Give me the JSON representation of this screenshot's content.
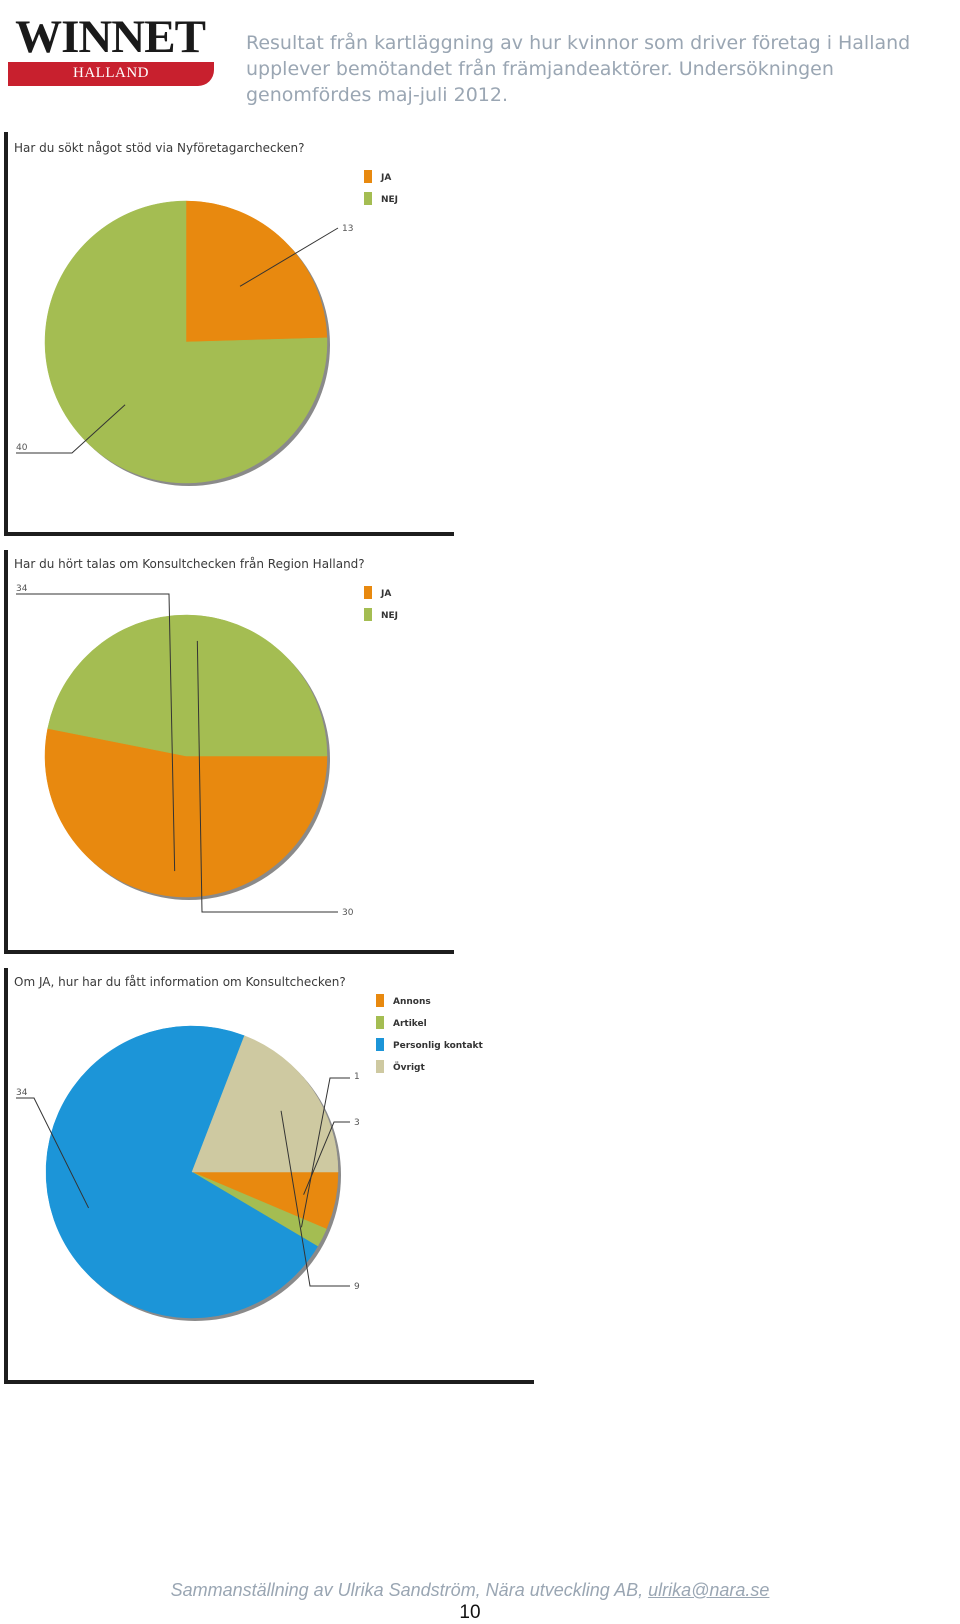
{
  "header": {
    "logo_word": "WINNET",
    "logo_sub": "HALLAND",
    "text": "Resultat från kartläggning av hur kvinnor som driver företag i Halland upplever bemötandet från främjandeaktörer. Undersökningen genomfördes maj-juli 2012."
  },
  "colors": {
    "orange": "#e8890f",
    "green": "#a4bd52",
    "blue": "#1c95d8",
    "beige": "#cec9a1",
    "brand_red": "#c8202e"
  },
  "chart_data": [
    {
      "type": "pie",
      "title": "Har du sökt något stöd via Nyföretagarchecken?",
      "categories": [
        "JA",
        "NEJ"
      ],
      "values": [
        13,
        40
      ],
      "colors": [
        "#e8890f",
        "#a4bd52"
      ],
      "legend_labels": [
        "JA",
        "NEJ"
      ],
      "legend_position": "top-right"
    },
    {
      "type": "pie",
      "title": "Har du hört talas om Konsultchecken från Region Halland?",
      "categories": [
        "JA",
        "NEJ"
      ],
      "values": [
        34,
        30
      ],
      "colors": [
        "#e8890f",
        "#a4bd52"
      ],
      "legend_labels": [
        "JA",
        "NEJ"
      ],
      "legend_position": "top-right"
    },
    {
      "type": "pie",
      "title": "Om JA, hur har du fått information om Konsultchecken?",
      "categories": [
        "Annons",
        "Artikel",
        "Personlig kontakt",
        "Övrigt"
      ],
      "values": [
        3,
        1,
        34,
        9
      ],
      "colors": [
        "#e8890f",
        "#a4bd52",
        "#1c95d8",
        "#cec9a1"
      ],
      "legend_labels": [
        "Annons",
        "Artikel",
        "Personlig kontakt",
        "Övrigt"
      ],
      "legend_position": "top-right"
    }
  ],
  "footer": {
    "text": "Sammanställning av Ulrika Sandström, Nära utveckling AB,",
    "email": "ulrika@nara.se",
    "page": "10"
  }
}
